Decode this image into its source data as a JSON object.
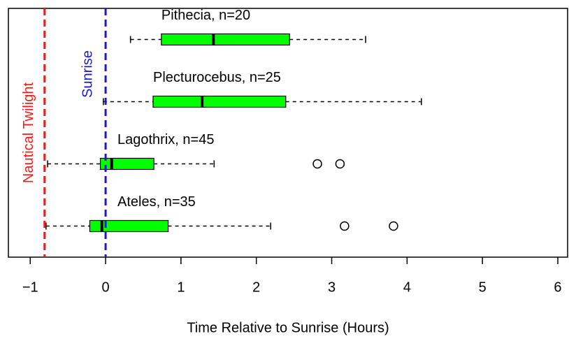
{
  "chart_data": {
    "type": "boxplot",
    "orientation": "horizontal",
    "xlabel": "Time Relative to Sunrise (Hours)",
    "xlim": [
      -1.29,
      6.13
    ],
    "xticks": [
      {
        "value": -1,
        "label": "−1"
      },
      0,
      1,
      2,
      3,
      4,
      5,
      6
    ],
    "box_color": "#00ff00",
    "series": [
      {
        "name": "Pithecia, n=20",
        "whislo": 0.33,
        "q1": 0.74,
        "med": 1.43,
        "q3": 2.44,
        "whishi": 3.45,
        "fliers": []
      },
      {
        "name": "Plecturocebus, n=25",
        "whislo": -0.03,
        "q1": 0.63,
        "med": 1.28,
        "q3": 2.39,
        "whishi": 4.19,
        "fliers": []
      },
      {
        "name": "Lagothrix, n=45",
        "whislo": -0.77,
        "q1": -0.07,
        "med": 0.08,
        "q3": 0.64,
        "whishi": 1.44,
        "fliers": [
          2.81,
          3.11
        ]
      },
      {
        "name": "Ateles, n=35",
        "whislo": -0.79,
        "q1": -0.21,
        "med": -0.05,
        "q3": 0.83,
        "whishi": 2.19,
        "fliers": [
          3.17,
          3.82
        ]
      }
    ],
    "vlines": [
      {
        "label": "Nautical Twilight",
        "value": -0.81,
        "color": "#e8201c"
      },
      {
        "label": "Sunrise",
        "value": 0,
        "color": "#1a1acc"
      }
    ]
  }
}
